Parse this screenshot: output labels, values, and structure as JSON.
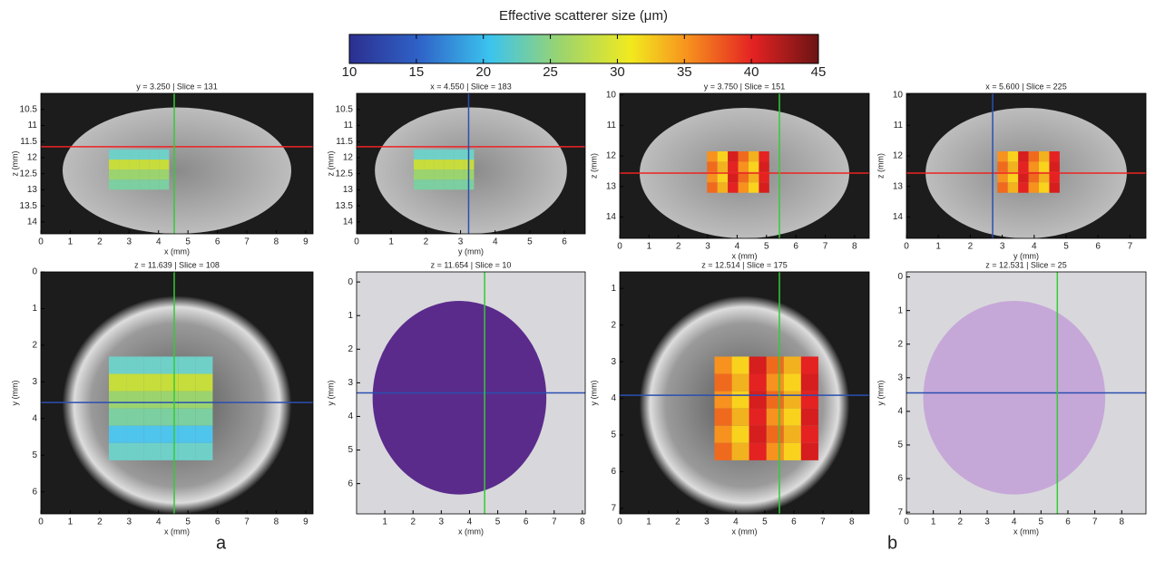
{
  "colorbar": {
    "title": "Effective scatterer size (μm)",
    "ticks": [
      10,
      15,
      20,
      25,
      30,
      35,
      40,
      45
    ],
    "lim": [
      10,
      45
    ]
  },
  "panels": [
    {
      "title": "y = 3.250 | Slice = 131",
      "xlabel": "x (mm)",
      "ylabel": "z (mm)",
      "xlim": [
        0,
        9.25
      ],
      "ylim": [
        10,
        14.37
      ],
      "xticks": [
        0,
        1,
        2,
        3,
        4,
        5,
        6,
        7,
        8,
        9
      ],
      "yticks": [
        10.5,
        11,
        11.5,
        12,
        12.5,
        13,
        13.5,
        14
      ]
    },
    {
      "title": "x = 4.550 | Slice = 183",
      "xlabel": "y (mm)",
      "ylabel": "z (mm)",
      "xlim": [
        0,
        6.6
      ],
      "ylim": [
        10,
        14.37
      ],
      "xticks": [
        0,
        1,
        2,
        3,
        4,
        5,
        6
      ],
      "yticks": [
        10.5,
        11,
        11.5,
        12,
        12.5,
        13,
        13.5,
        14
      ]
    },
    {
      "title": "y = 3.750 | Slice = 151",
      "xlabel": "x (mm)",
      "ylabel": "z (mm)",
      "xlim": [
        0,
        8.5
      ],
      "ylim": [
        9.95,
        14.7
      ],
      "xticks": [
        0,
        1,
        2,
        3,
        4,
        5,
        6,
        7,
        8
      ],
      "yticks": [
        10,
        11,
        12,
        13,
        14
      ]
    },
    {
      "title": "x = 5.600 | Slice = 225",
      "xlabel": "y (mm)",
      "ylabel": "z (mm)",
      "xlim": [
        0,
        7.5
      ],
      "ylim": [
        9.95,
        14.7
      ],
      "xticks": [
        0,
        1,
        2,
        3,
        4,
        5,
        6,
        7
      ],
      "yticks": [
        10,
        11,
        12,
        13,
        14
      ]
    },
    {
      "title": "z = 11.639 | Slice = 108",
      "xlabel": "x (mm)",
      "ylabel": "y (mm)",
      "xlim": [
        0,
        9.25
      ],
      "ylim": [
        0,
        6.6
      ],
      "xticks": [
        0,
        1,
        2,
        3,
        4,
        5,
        6,
        7,
        8,
        9
      ],
      "yticks": [
        0,
        1,
        2,
        3,
        4,
        5,
        6
      ]
    },
    {
      "title": "z = 11.654 | Slice = 10",
      "xlabel": "x (mm)",
      "ylabel": "y (mm)",
      "xlim": [
        0,
        8.1
      ],
      "ylim": [
        -0.3,
        6.9
      ],
      "xticks": [
        1,
        2,
        3,
        4,
        5,
        6,
        7,
        8
      ],
      "yticks": [
        0,
        1,
        2,
        3,
        4,
        5,
        6
      ]
    },
    {
      "title": "z = 12.514 | Slice = 175",
      "xlabel": "x (mm)",
      "ylabel": "y (mm)",
      "xlim": [
        0,
        8.6
      ],
      "ylim": [
        0.55,
        7.15
      ],
      "xticks": [
        0,
        1,
        2,
        3,
        4,
        5,
        6,
        7,
        8
      ],
      "yticks": [
        1,
        2,
        3,
        4,
        5,
        6,
        7
      ]
    },
    {
      "title": "z = 12.531 | Slice = 25",
      "xlabel": "x (mm)",
      "ylabel": "y (mm)",
      "xlim": [
        0,
        8.9
      ],
      "ylim": [
        -0.15,
        7.05
      ],
      "xticks": [
        0,
        1,
        2,
        3,
        4,
        5,
        6,
        7,
        8
      ],
      "yticks": [
        0,
        1,
        2,
        3,
        4,
        5,
        6,
        7
      ]
    }
  ],
  "labels": [
    "a",
    "b"
  ]
}
